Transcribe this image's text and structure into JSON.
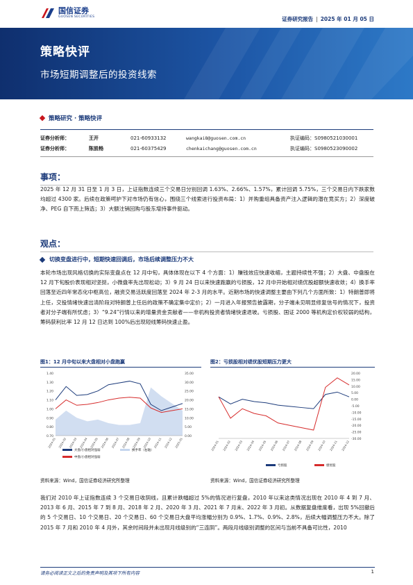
{
  "header": {
    "logo_cn": "国信证券",
    "logo_en": "GUOSEN SECURITIES",
    "report_type": "证券研究报告",
    "date": "2025 年 01 月 05 日"
  },
  "banner": {
    "title": "策略快评",
    "subtitle": "市场短期调整后的投资线索"
  },
  "category": "策略研究 · 策略快评",
  "analysts": [
    {
      "role": "证券分析师：",
      "name": "王开",
      "phone": "021-60933132",
      "email": "wangkai8@guosen.com.cn",
      "cert": "执证编码：S0980521030001"
    },
    {
      "role": "证券分析师：",
      "name": "陈凯畅",
      "phone": "021-60375429",
      "email": "chenkaichang@guosen.com.cn",
      "cert": "执证编码：S0980523090002"
    }
  ],
  "sections": {
    "event_title": "事项：",
    "event_text": "2025 年 12 月 31 日至 1 月 3 日，上证指数连续三个交易日分别回调 1.63%、2.66%、1.57%，累计回调 5.75%，三个交易日内下跌家数均超过 4300 家。后续在政策呵护下对市场仍有信心，围绕三个线索进行投资布局：1）并购重组具备资产注入逻辑的潜在竞买方；2）深度破净、PEG 自下而上筛选；3）大额注销回购与股东增持事件驱动。",
    "view_title": "观点：",
    "view_subhead": "切换变盘进行中，短期快速回调后，市场后续调整压力不大",
    "view_text": "本轮市场出现风格切换的实际变盘点在 12 月中旬，具体体现在以下 4 个方面：1）赚钱效应快速收缩，主题持续性不强；2）大盘、中盘股在 12 月下旬股价表现相对坚挺，小微盘率先出现松动；3）9 月 24 日以来快速跑赢的亏损股，12 月中开始相对绩优股超额快速收敛；4）换手率回落至近四年常态化中枢高位，融资交易活跃度回落至 2024 年 2-3 月的水平。近期市场的快速调整主要由下列几个方面所致：1）特朗普即将上任，交投情绪快速出清阶段对特朗普上任后的政策不确定集中定价；2）一月进入年报预告披露期，分子端未见明显修复信号的情况下，投资者对分子端有所忧虑；3）“9.24”行情以来的增量资金贡献者——非机构投资者情绪快速退坡。亏损股、国证 2000 等机构定价权较弱的结构，筹码获利比率 12 月 12 日达到 100%后出现短线筹码快速止盈。",
    "bottom_text": "我们对 2010 年上证指数连续 3 个交易日收阴线，且累计跌幅超过 5%的情况进行复盘，2010 年以来这类情况出现在 2010 年 4 到 7 月、2013 年 6 月、2015 年 7 到 8 月、2018 年 2 月、2020 年 3 月、2021 年 7 月末、2022 年 3 月初。从数据复盘维度看，出现 5%回撤后的 5 个交易日、10 个交易日、20 个交易日、60 个交易日大盘平均涨幅分别为 0.9%、1.7%、0.9%、2.8%，后续大幅调整压力不大。除了 2015 年 7 月和 2010 年 4 月外，其余时间段并未出现月线级别的“三连阴”。两段月线级别调整的区间与当前不具备可比性，2010"
  },
  "figures": [
    {
      "title": "图1：12 月中旬以来大盘相对小盘跑赢",
      "source": "资料来源：Wind，国信证券经济研究所整理",
      "chart_data": {
        "type": "line",
        "x": [
          "2024-01",
          "2024-02",
          "2024-03",
          "2024-04",
          "2024-05",
          "2024-06",
          "2024-07",
          "2024-08",
          "2024-09",
          "2024-10",
          "2024-11",
          "2024-12",
          "2025-01"
        ],
        "ylim_left": [
          0.7,
          1.4
        ],
        "ylim_right": [
          0,
          35
        ],
        "left_ticks": [
          "1.40",
          "1.30",
          "1.20",
          "1.10",
          "1.00",
          "0.90",
          "0.80",
          "0.70"
        ],
        "right_ticks": [
          "35.00",
          "30.00",
          "25.00",
          "20.00",
          "15.00",
          "10.00",
          "5.00",
          "0.00"
        ],
        "series": [
          {
            "legend": "大盘/小盘相对强弱",
            "color": "#1b3a7a",
            "values": [
              1.1,
              1.25,
              1.15,
              1.16,
              1.2,
              1.27,
              1.29,
              1.31,
              1.28,
              1.05,
              0.98,
              1.02,
              1.06
            ]
          },
          {
            "legend": "中盘/小盘相对强弱",
            "color": "#d62b2b",
            "values": [
              1.0,
              1.1,
              1.04,
              1.05,
              1.07,
              1.1,
              1.12,
              1.13,
              1.12,
              1.01,
              0.96,
              0.98,
              1.0
            ]
          },
          {
            "legend": "换手率（右轴）",
            "color": "#c5d6ee",
            "values": [
              9,
              14,
              10,
              8,
              9,
              7,
              6,
              6,
              7,
              27,
              22,
              18,
              14
            ]
          }
        ]
      }
    },
    {
      "title": "图2：亏损股相对绩优股短期压力更大",
      "source": "资料来源：Wind，国信证券经济研究所整理",
      "chart_data": {
        "type": "line",
        "x": [
          "2024-01",
          "2024-02",
          "2024-03",
          "2024-04",
          "2024-05",
          "2024-06",
          "2024-07",
          "2024-08",
          "2024-09",
          "2024-10",
          "2024-11",
          "2024-12"
        ],
        "ylim_right": [
          -35,
          20
        ],
        "right_ticks": [
          "20.00",
          "15.00",
          "10.00",
          "5.00",
          "0.00",
          "-5.00",
          "-10.00",
          "-15.00",
          "-20.00",
          "-25.00",
          "-30.00"
        ],
        "series": [
          {
            "legend": "亏损股",
            "color": "#1b3a7a",
            "values": [
              0,
              -6,
              -2,
              -4,
              -5,
              -7,
              -8,
              -9,
              -10,
              2,
              4,
              0
            ]
          },
          {
            "legend": "绩优股",
            "color": "#d62b2b",
            "values": [
              0,
              -18,
              -10,
              -14,
              -16,
              -22,
              -24,
              -26,
              -28,
              8,
              16,
              10
            ]
          }
        ]
      }
    }
  ],
  "footer": {
    "disclaimer": "请务必阅读正文之后的免责声明及其项下所有内容",
    "page": "1"
  },
  "colors": {
    "brand": "#1b3a7a",
    "accent": "#c8161d"
  }
}
